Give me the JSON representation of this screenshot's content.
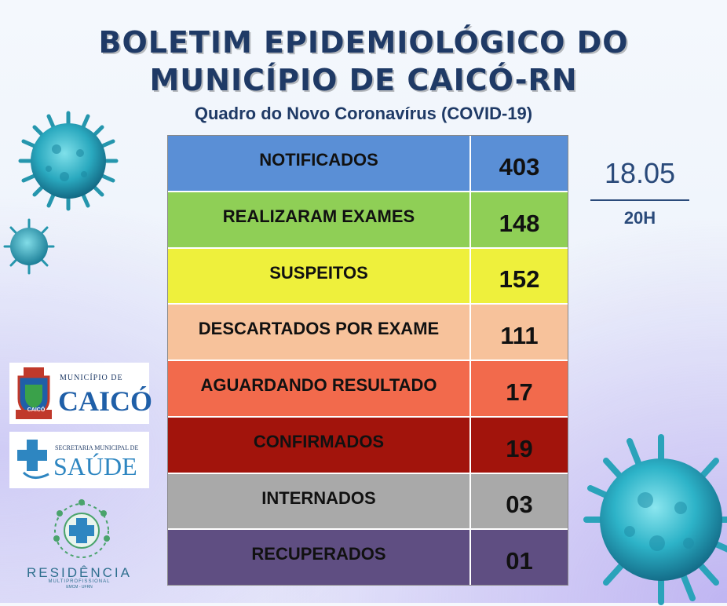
{
  "header": {
    "title_line1": "BOLETIM EPIDEMIOLÓGICO DO",
    "title_line2": "MUNICÍPIO DE CAICÓ-RN",
    "subtitle": "Quadro do Novo Coronavírus (COVID-19)"
  },
  "rows": [
    {
      "label": "NOTIFICADOS",
      "value": "403",
      "color": "#5a8fd6"
    },
    {
      "label": "REALIZARAM EXAMES",
      "value": "148",
      "color": "#8fcf56"
    },
    {
      "label": "SUSPEITOS",
      "value": "152",
      "color": "#eef03c"
    },
    {
      "label": "DESCARTADOS POR EXAME",
      "value": "111",
      "color": "#f7c29b"
    },
    {
      "label": "AGUARDANDO RESULTADO",
      "value": "17",
      "color": "#f26a4c"
    },
    {
      "label": "CONFIRMADOS",
      "value": "19",
      "color": "#a2140c"
    },
    {
      "label": "INTERNADOS",
      "value": "03",
      "color": "#a9a9a9"
    },
    {
      "label": "RECUPERADOS",
      "value": "01",
      "color": "#5f4e82"
    }
  ],
  "update": {
    "date": "18.05",
    "time": "20H"
  },
  "logos": {
    "caico_small": "MUNICÍPIO DE",
    "caico_big": "CAICÓ",
    "caico_ribbon": "CAICÓ",
    "saude_small": "SECRETARIA MUNICIPAL DE",
    "saude_big": "SAÚDE",
    "residencia_big": "RESIDÊNCIA",
    "residencia_small": "MULTIPROFISSIONAL",
    "residencia_tiny": "EMCM - UFRN"
  },
  "icons": [
    "coronavirus-icon",
    "caico-coat-of-arms-icon",
    "health-cross-icon",
    "residencia-emblem-icon"
  ]
}
